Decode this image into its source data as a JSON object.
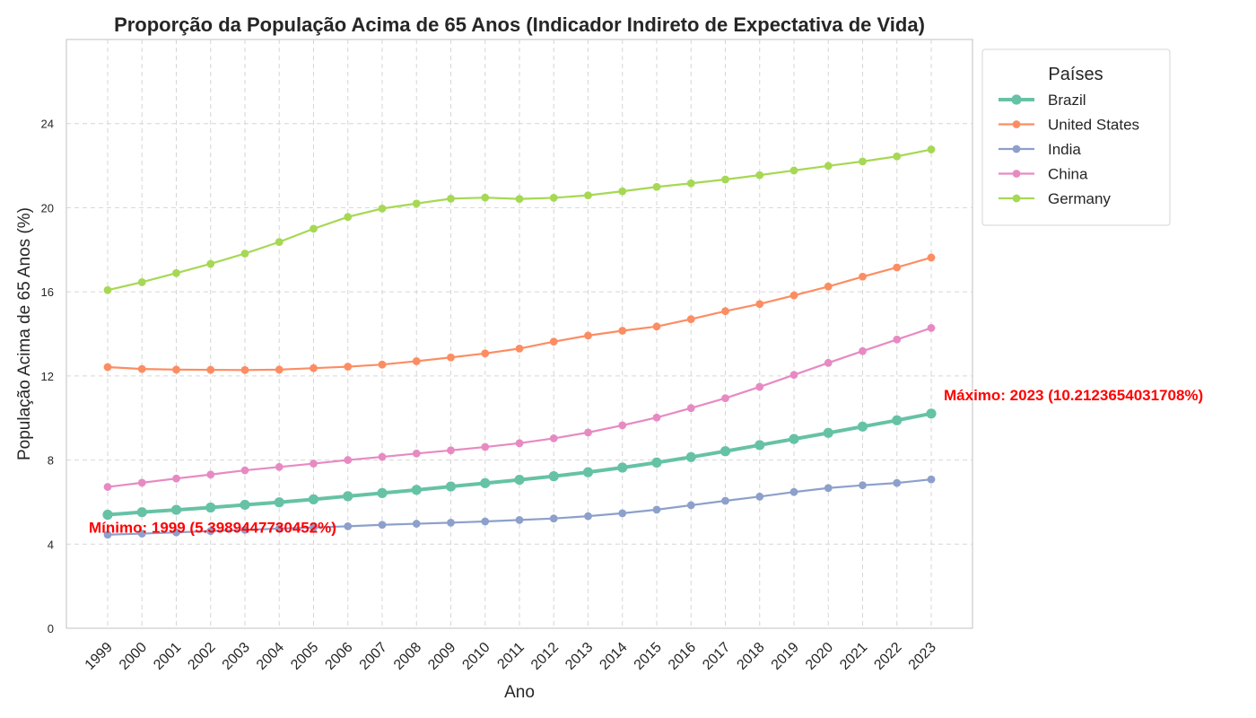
{
  "chart_data": {
    "type": "line",
    "title": "Proporção da População Acima de 65 Anos (Indicador Indireto de Expectativa de Vida)",
    "xlabel": "Ano",
    "ylabel": "População Acima de 65 Anos (%)",
    "x": [
      "1999",
      "2000",
      "2001",
      "2002",
      "2003",
      "2004",
      "2005",
      "2006",
      "2007",
      "2008",
      "2009",
      "2010",
      "2011",
      "2012",
      "2013",
      "2014",
      "2015",
      "2016",
      "2017",
      "2018",
      "2019",
      "2020",
      "2021",
      "2022",
      "2023"
    ],
    "ylim": [
      0,
      28
    ],
    "yticks": [
      "0",
      "4",
      "8",
      "12",
      "16",
      "20",
      "24"
    ],
    "grid": true,
    "legend": {
      "title": "Países",
      "placement": "outside top-right"
    },
    "series": [
      {
        "name": "Brazil",
        "color": "#66c2a5",
        "emphasized": true,
        "values": [
          5.4,
          5.52,
          5.63,
          5.74,
          5.87,
          5.99,
          6.13,
          6.28,
          6.43,
          6.58,
          6.74,
          6.9,
          7.06,
          7.23,
          7.42,
          7.64,
          7.88,
          8.14,
          8.42,
          8.71,
          9.0,
          9.29,
          9.59,
          9.89,
          10.21
        ]
      },
      {
        "name": "United States",
        "color": "#fc8d62",
        "values": [
          12.42,
          12.33,
          12.3,
          12.29,
          12.28,
          12.3,
          12.37,
          12.44,
          12.54,
          12.7,
          12.88,
          13.07,
          13.3,
          13.63,
          13.92,
          14.15,
          14.35,
          14.7,
          15.08,
          15.42,
          15.83,
          16.25,
          16.72,
          17.16,
          17.63
        ]
      },
      {
        "name": "India",
        "color": "#8da0cb",
        "values": [
          4.45,
          4.5,
          4.56,
          4.62,
          4.68,
          4.74,
          4.79,
          4.85,
          4.92,
          4.97,
          5.02,
          5.08,
          5.15,
          5.22,
          5.33,
          5.47,
          5.64,
          5.85,
          6.06,
          6.26,
          6.48,
          6.67,
          6.8,
          6.91,
          7.08
        ]
      },
      {
        "name": "China",
        "color": "#e78ac3",
        "values": [
          6.72,
          6.92,
          7.12,
          7.31,
          7.51,
          7.67,
          7.83,
          8.0,
          8.15,
          8.31,
          8.46,
          8.62,
          8.8,
          9.03,
          9.31,
          9.65,
          10.02,
          10.47,
          10.94,
          11.48,
          12.05,
          12.62,
          13.18,
          13.73,
          14.28
        ]
      },
      {
        "name": "Germany",
        "color": "#a6d854",
        "values": [
          16.08,
          16.46,
          16.89,
          17.33,
          17.82,
          18.37,
          19.0,
          19.56,
          19.96,
          20.2,
          20.43,
          20.48,
          20.42,
          20.47,
          20.59,
          20.78,
          20.99,
          21.16,
          21.34,
          21.55,
          21.77,
          21.99,
          22.2,
          22.44,
          22.77
        ]
      }
    ],
    "annotations": [
      {
        "text": "Máximo: 2023 (10.2123654031708%)",
        "color": "#ff0000",
        "series": "Brazil",
        "year": "2023"
      },
      {
        "text": "Mínimo: 1999 (5.3989447730452%)",
        "color": "#ff0000",
        "series": "Brazil",
        "year": "1999"
      }
    ]
  }
}
